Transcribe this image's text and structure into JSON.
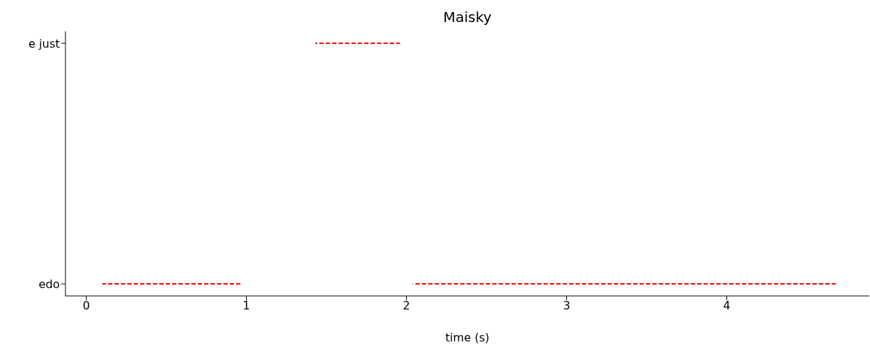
{
  "chart_data": {
    "type": "bar",
    "orientation": "horizontal",
    "title": "Maisky",
    "xlabel": "time (s)",
    "categories": [
      "e just",
      "edo"
    ],
    "xlim": [
      -0.13,
      4.89
    ],
    "xticks": [
      0,
      1,
      2,
      3,
      4
    ],
    "grid": false,
    "legend": false,
    "line_style": "dashed",
    "series": [
      {
        "color": "#ff0000",
        "base": [
          1.43,
          0.1
        ],
        "values": [
          0.53,
          0.87
        ]
      },
      {
        "color": "#ff0000",
        "base": [
          null,
          2.04
        ],
        "values": [
          null,
          2.64
        ]
      }
    ]
  }
}
